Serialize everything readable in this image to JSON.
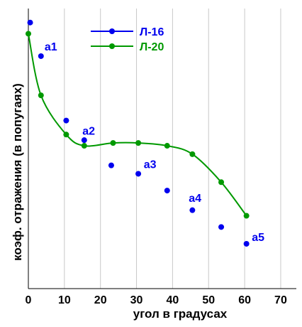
{
  "chart_data": {
    "type": "scatter",
    "xlabel": "угол в градусах",
    "ylabel": "коэф. отражения (в попугаях)",
    "xlim": [
      0,
      75
    ],
    "x_ticks": [
      "0",
      "10",
      "20",
      "30",
      "40",
      "50",
      "60",
      "70"
    ],
    "grid": "vertical",
    "legend_position": "top-center",
    "series": [
      {
        "name": "Л-16",
        "color": "#0000ee",
        "style": "points",
        "x": [
          0.5,
          3.5,
          10.5,
          15.5,
          23,
          30.5,
          38.5,
          45.5,
          53.5,
          60.5
        ],
        "y": [
          0.95,
          0.83,
          0.6,
          0.53,
          0.44,
          0.41,
          0.35,
          0.28,
          0.22,
          0.16
        ]
      },
      {
        "name": "Л-20",
        "color": "#009900",
        "style": "line+points",
        "x": [
          0,
          3.5,
          10.5,
          15.5,
          23.5,
          30.5,
          38.5,
          45.5,
          53.5,
          60.5
        ],
        "y": [
          0.91,
          0.69,
          0.55,
          0.51,
          0.52,
          0.52,
          0.51,
          0.48,
          0.38,
          0.26
        ]
      }
    ],
    "annotations": [
      {
        "label": "a1",
        "x": 4.5,
        "y": 0.85
      },
      {
        "label": "a2",
        "x": 15,
        "y": 0.55
      },
      {
        "label": "a3",
        "x": 32,
        "y": 0.43
      },
      {
        "label": "a4",
        "x": 44.5,
        "y": 0.31
      },
      {
        "label": "a5",
        "x": 62,
        "y": 0.17
      }
    ]
  }
}
